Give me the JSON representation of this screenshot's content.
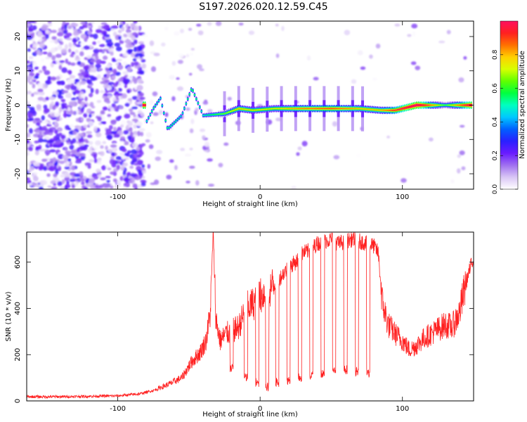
{
  "title": "S197.2026.020.12.59.C45",
  "chart_data": [
    {
      "type": "heatmap",
      "title": "S197.2026.020.12.59.C45",
      "xlabel": "Height of straight line (km)",
      "ylabel": "Frequency (Hz)",
      "xlim": [
        -164,
        150
      ],
      "ylim": [
        -24.5,
        24.5
      ],
      "xticks": [
        -100,
        0,
        100
      ],
      "yticks": [
        -20,
        -10,
        0,
        10,
        20
      ],
      "colorbar": {
        "label": "Normalized spectral amplitude",
        "range": [
          0,
          1
        ],
        "ticks": [
          0.0,
          0.2,
          0.4,
          0.6,
          0.8
        ],
        "colormap": [
          "#ffffff",
          "#d9c6f5",
          "#a070f0",
          "#6a1bff",
          "#2a20ff",
          "#0060ff",
          "#00c8ff",
          "#00ffc0",
          "#00ff40",
          "#60ff00",
          "#d8ff00",
          "#ffd000",
          "#ff7000",
          "#ff2020",
          "#ff1060"
        ]
      },
      "ridge": {
        "description_points": [
          {
            "x": -80,
            "y": -5,
            "amp": 0.3
          },
          {
            "x": -75,
            "y": -1,
            "amp": 0.35
          },
          {
            "x": -70,
            "y": 2,
            "amp": 0.3
          },
          {
            "x": -65,
            "y": -7,
            "amp": 0.35
          },
          {
            "x": -55,
            "y": -3,
            "amp": 0.3
          },
          {
            "x": -48,
            "y": 5,
            "amp": 0.4
          },
          {
            "x": -40,
            "y": -3,
            "amp": 0.3
          },
          {
            "x": -25,
            "y": -2.5,
            "amp": 0.45
          },
          {
            "x": -15,
            "y": -1,
            "amp": 0.6
          },
          {
            "x": -5,
            "y": -1.5,
            "amp": 0.55
          },
          {
            "x": 10,
            "y": -1,
            "amp": 0.55
          },
          {
            "x": 30,
            "y": -1,
            "amp": 0.65
          },
          {
            "x": 50,
            "y": -1,
            "amp": 0.7
          },
          {
            "x": 70,
            "y": -1,
            "amp": 0.6
          },
          {
            "x": 85,
            "y": -1.5,
            "amp": 0.6
          },
          {
            "x": 95,
            "y": -1.5,
            "amp": 0.75
          },
          {
            "x": 110,
            "y": 0,
            "amp": 0.95
          },
          {
            "x": 130,
            "y": 0,
            "amp": 0.4
          },
          {
            "x": 148,
            "y": 0,
            "amp": 0.9
          }
        ],
        "gaps_x": [
          -25,
          -15,
          -5,
          5,
          15,
          25,
          35,
          45,
          55,
          65,
          72
        ]
      }
    },
    {
      "type": "line",
      "xlabel": "Height of straight line (km)",
      "ylabel": "SNR (10 * v/v)",
      "xlim": [
        -164,
        150
      ],
      "ylim": [
        0,
        730
      ],
      "xticks": [
        -100,
        0,
        100
      ],
      "yticks": [
        0,
        200,
        400,
        600
      ],
      "color": "#ff2020",
      "series": [
        {
          "name": "SNR",
          "x": [
            -164,
            -140,
            -120,
            -100,
            -85,
            -75,
            -65,
            -55,
            -48,
            -42,
            -38,
            -35,
            -33,
            -31,
            -28,
            -24,
            -20,
            -15,
            -10,
            -5,
            0,
            5,
            10,
            15,
            20,
            25,
            30,
            35,
            40,
            45,
            50,
            55,
            60,
            65,
            70,
            75,
            80,
            83,
            86,
            90,
            95,
            100,
            105,
            110,
            115,
            120,
            125,
            130,
            135,
            140,
            145,
            150
          ],
          "values": [
            18,
            18,
            20,
            22,
            30,
            45,
            70,
            100,
            170,
            210,
            260,
            380,
            730,
            350,
            260,
            290,
            300,
            320,
            400,
            420,
            450,
            480,
            500,
            540,
            580,
            600,
            640,
            650,
            680,
            690,
            700,
            680,
            690,
            700,
            690,
            680,
            670,
            640,
            420,
            330,
            290,
            260,
            220,
            240,
            270,
            290,
            310,
            330,
            320,
            380,
            520,
            620
          ]
        }
      ],
      "dropouts": [
        {
          "x": -20,
          "min": 120
        },
        {
          "x": -10,
          "min": 80
        },
        {
          "x": -2,
          "min": 60
        },
        {
          "x": 5,
          "min": 40
        },
        {
          "x": 12,
          "min": 60
        },
        {
          "x": 20,
          "min": 70
        },
        {
          "x": 28,
          "min": 80
        },
        {
          "x": 36,
          "min": 90
        },
        {
          "x": 44,
          "min": 100
        },
        {
          "x": 52,
          "min": 110
        },
        {
          "x": 60,
          "min": 115
        },
        {
          "x": 68,
          "min": 105
        },
        {
          "x": 76,
          "min": 100
        }
      ]
    }
  ]
}
